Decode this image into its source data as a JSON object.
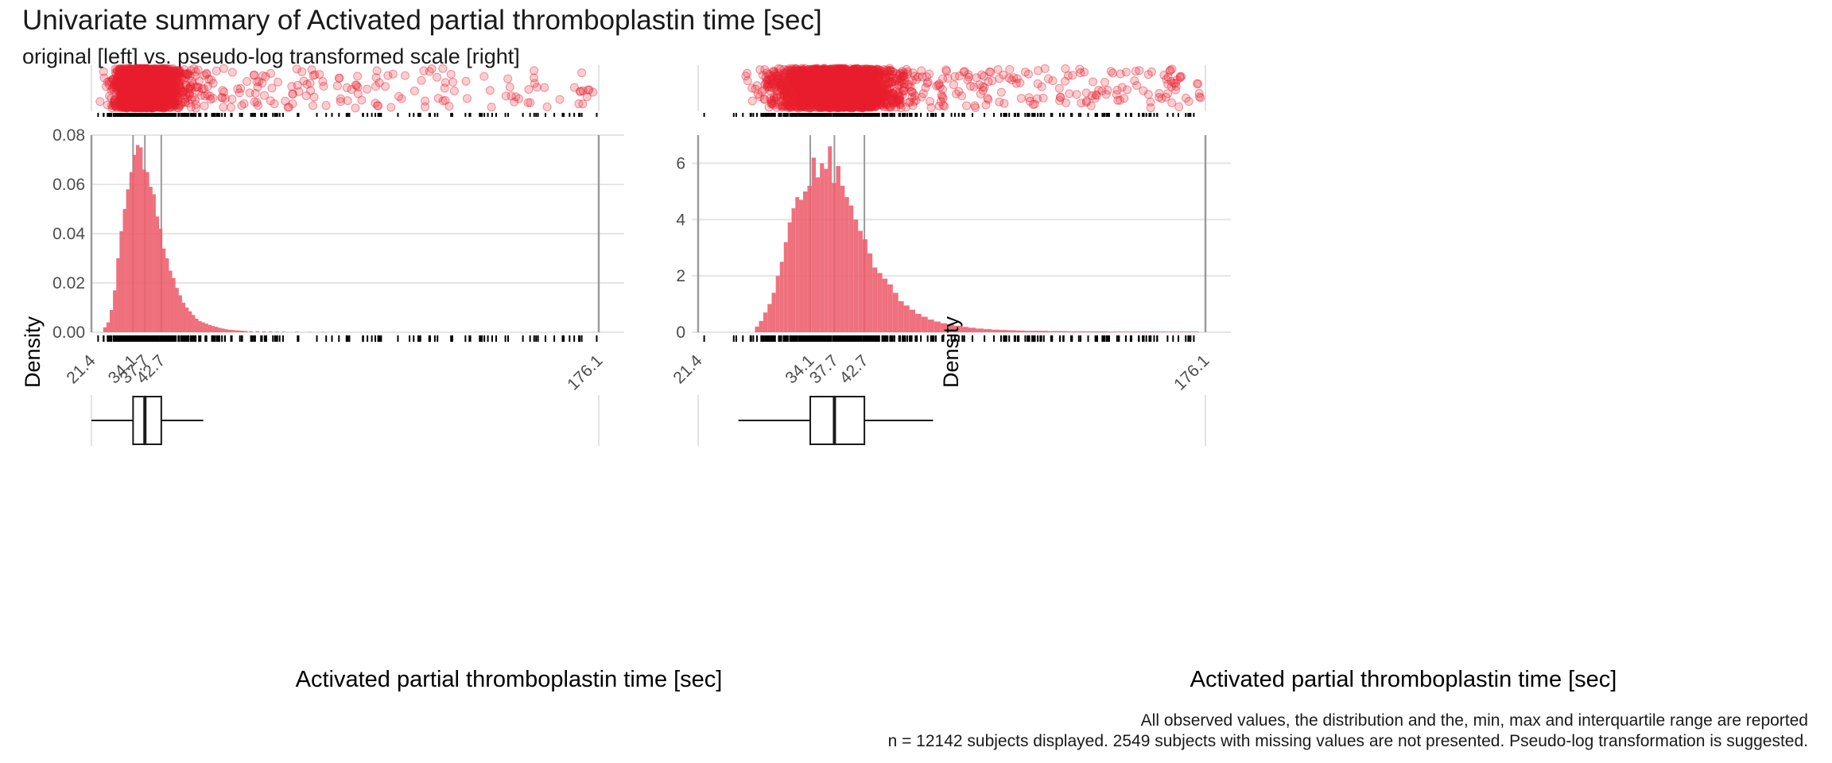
{
  "title": "Univariate summary of Activated partial thromboplastin time [sec]",
  "subtitle": "original [left] vs. pseudo-log transformed scale [right]",
  "caption": {
    "line1": "All observed values, the distribution and the, min, max and interquartile range are reported",
    "line2": "n = 12142 subjects displayed. 2549 subjects with missing values are not presented. Pseudo-log transformation is suggested."
  },
  "colors": {
    "points": "#e8202e",
    "bars": "#ed5d6c",
    "vlines": "#9a9a9a",
    "grid": "#e5e5e5"
  },
  "chart_data": [
    {
      "type": "bar",
      "panel": "original",
      "xlabel": "Activated partial thromboplastin time [sec]",
      "ylabel": "Density",
      "xlim": [
        21.4,
        176.1
      ],
      "ylim": [
        0,
        0.08
      ],
      "y_ticks": [
        0,
        0.02,
        0.04,
        0.06,
        0.08
      ],
      "y_tick_labels": [
        "0.00",
        "0.02",
        "0.04",
        "0.06",
        "0.08"
      ],
      "x_ticks": [
        21.4,
        34.1,
        37.7,
        42.7,
        176.1
      ],
      "x_tick_labels": [
        "21.4",
        "34.1",
        "37.7",
        "42.7",
        "176.1"
      ],
      "reference_lines": [
        21.4,
        34.1,
        37.7,
        42.7,
        176.1
      ],
      "boxplot": {
        "whisker_low": 21.4,
        "q1": 34.1,
        "median": 37.7,
        "q3": 42.7,
        "whisker_high": 55.5
      },
      "histogram": {
        "bin_width": 1.05,
        "bins": [
          {
            "x": 25.5,
            "density": 0.002
          },
          {
            "x": 26.5,
            "density": 0.004
          },
          {
            "x": 27.5,
            "density": 0.009
          },
          {
            "x": 28.5,
            "density": 0.017
          },
          {
            "x": 29.5,
            "density": 0.03
          },
          {
            "x": 30.5,
            "density": 0.041
          },
          {
            "x": 31.5,
            "density": 0.05
          },
          {
            "x": 32.5,
            "density": 0.058
          },
          {
            "x": 33.5,
            "density": 0.065
          },
          {
            "x": 34.5,
            "density": 0.072
          },
          {
            "x": 35.5,
            "density": 0.076
          },
          {
            "x": 36.5,
            "density": 0.075
          },
          {
            "x": 37.5,
            "density": 0.066
          },
          {
            "x": 38.5,
            "density": 0.065
          },
          {
            "x": 39.5,
            "density": 0.059
          },
          {
            "x": 40.5,
            "density": 0.056
          },
          {
            "x": 41.5,
            "density": 0.047
          },
          {
            "x": 42.5,
            "density": 0.042
          },
          {
            "x": 43.5,
            "density": 0.034
          },
          {
            "x": 44.5,
            "density": 0.03
          },
          {
            "x": 45.5,
            "density": 0.025
          },
          {
            "x": 46.5,
            "density": 0.022
          },
          {
            "x": 47.5,
            "density": 0.018
          },
          {
            "x": 48.5,
            "density": 0.015
          },
          {
            "x": 49.5,
            "density": 0.012
          },
          {
            "x": 50.5,
            "density": 0.01
          },
          {
            "x": 51.5,
            "density": 0.0085
          },
          {
            "x": 52.5,
            "density": 0.007
          },
          {
            "x": 53.5,
            "density": 0.0055
          },
          {
            "x": 54.5,
            "density": 0.0045
          },
          {
            "x": 55.5,
            "density": 0.004
          },
          {
            "x": 56.5,
            "density": 0.0035
          },
          {
            "x": 57.5,
            "density": 0.003
          },
          {
            "x": 58.5,
            "density": 0.0025
          },
          {
            "x": 59.5,
            "density": 0.0022
          },
          {
            "x": 60.5,
            "density": 0.0018
          },
          {
            "x": 61.5,
            "density": 0.0015
          },
          {
            "x": 62.5,
            "density": 0.0012
          },
          {
            "x": 63.5,
            "density": 0.001
          },
          {
            "x": 64.5,
            "density": 0.0009
          },
          {
            "x": 65.5,
            "density": 0.0008
          },
          {
            "x": 66.5,
            "density": 0.0007
          },
          {
            "x": 67.5,
            "density": 0.0006
          },
          {
            "x": 68.5,
            "density": 0.0005
          },
          {
            "x": 70,
            "density": 0.0004
          },
          {
            "x": 72,
            "density": 0.0004
          },
          {
            "x": 74,
            "density": 0.0003
          },
          {
            "x": 76,
            "density": 0.0003
          },
          {
            "x": 78,
            "density": 0.0002
          },
          {
            "x": 80,
            "density": 0.0002
          },
          {
            "x": 84,
            "density": 0.0002
          },
          {
            "x": 88,
            "density": 0.0001
          },
          {
            "x": 92,
            "density": 0.0001
          },
          {
            "x": 96,
            "density": 0.0001
          }
        ]
      }
    },
    {
      "type": "bar",
      "panel": "pseudo-log",
      "xlabel": "Activated partial thromboplastin time [sec]",
      "ylabel": "Density",
      "xlim": [
        21.4,
        176.1
      ],
      "ylim": [
        0,
        7
      ],
      "y_ticks": [
        0,
        2,
        4,
        6
      ],
      "y_tick_labels": [
        "0",
        "2",
        "4",
        "6"
      ],
      "x_ticks": [
        21.4,
        34.1,
        37.7,
        42.7,
        176.1
      ],
      "x_tick_labels": [
        "21.4",
        "34.1",
        "37.7",
        "42.7",
        "176.1"
      ],
      "reference_lines": [
        21.4,
        34.1,
        37.7,
        42.7,
        176.1
      ],
      "boxplot": {
        "whisker_low": 25.3,
        "q1": 34.1,
        "median": 37.7,
        "q3": 42.7,
        "whisker_high": 56.8
      },
      "histogram": {
        "bins": [
          {
            "x": 27.3,
            "density": 0.2
          },
          {
            "x": 27.8,
            "density": 0.4
          },
          {
            "x": 28.3,
            "density": 0.7
          },
          {
            "x": 28.8,
            "density": 1.0
          },
          {
            "x": 29.3,
            "density": 1.4
          },
          {
            "x": 29.8,
            "density": 2.0
          },
          {
            "x": 30.3,
            "density": 2.5
          },
          {
            "x": 30.8,
            "density": 3.2
          },
          {
            "x": 31.3,
            "density": 3.9
          },
          {
            "x": 31.8,
            "density": 4.4
          },
          {
            "x": 32.3,
            "density": 4.8
          },
          {
            "x": 32.8,
            "density": 4.7
          },
          {
            "x": 33.4,
            "density": 5.0
          },
          {
            "x": 34.0,
            "density": 5.2
          },
          {
            "x": 34.6,
            "density": 6.2
          },
          {
            "x": 35.2,
            "density": 5.5
          },
          {
            "x": 35.8,
            "density": 6.0
          },
          {
            "x": 36.4,
            "density": 5.8
          },
          {
            "x": 37.0,
            "density": 6.6
          },
          {
            "x": 37.6,
            "density": 5.3
          },
          {
            "x": 38.3,
            "density": 5.9
          },
          {
            "x": 39.0,
            "density": 5.2
          },
          {
            "x": 39.7,
            "density": 4.8
          },
          {
            "x": 40.4,
            "density": 4.5
          },
          {
            "x": 41.2,
            "density": 4.0
          },
          {
            "x": 42.0,
            "density": 3.6
          },
          {
            "x": 42.8,
            "density": 3.3
          },
          {
            "x": 43.7,
            "density": 2.8
          },
          {
            "x": 44.6,
            "density": 2.3
          },
          {
            "x": 45.5,
            "density": 2.1
          },
          {
            "x": 46.5,
            "density": 1.9
          },
          {
            "x": 47.5,
            "density": 1.7
          },
          {
            "x": 48.6,
            "density": 1.4
          },
          {
            "x": 49.7,
            "density": 1.1
          },
          {
            "x": 50.9,
            "density": 0.95
          },
          {
            "x": 52.1,
            "density": 0.8
          },
          {
            "x": 53.4,
            "density": 0.65
          },
          {
            "x": 54.8,
            "density": 0.55
          },
          {
            "x": 56.3,
            "density": 0.45
          },
          {
            "x": 57.8,
            "density": 0.38
          },
          {
            "x": 59.4,
            "density": 0.32
          },
          {
            "x": 61.1,
            "density": 0.27
          },
          {
            "x": 62.9,
            "density": 0.23
          },
          {
            "x": 64.8,
            "density": 0.19
          },
          {
            "x": 66.8,
            "density": 0.16
          },
          {
            "x": 68.9,
            "density": 0.13
          },
          {
            "x": 71.2,
            "density": 0.11
          },
          {
            "x": 73.6,
            "density": 0.09
          },
          {
            "x": 76.1,
            "density": 0.08
          },
          {
            "x": 78.8,
            "density": 0.07
          },
          {
            "x": 81.7,
            "density": 0.06
          },
          {
            "x": 84.8,
            "density": 0.05
          },
          {
            "x": 88.1,
            "density": 0.05
          },
          {
            "x": 95.3,
            "density": 0.04
          },
          {
            "x": 103.4,
            "density": 0.03
          },
          {
            "x": 112.4,
            "density": 0.03
          },
          {
            "x": 122.6,
            "density": 0.02
          },
          {
            "x": 134.1,
            "density": 0.02
          },
          {
            "x": 147.0,
            "density": 0.02
          },
          {
            "x": 161.5,
            "density": 0.02
          },
          {
            "x": 170.0,
            "density": 0.02
          }
        ]
      }
    }
  ]
}
